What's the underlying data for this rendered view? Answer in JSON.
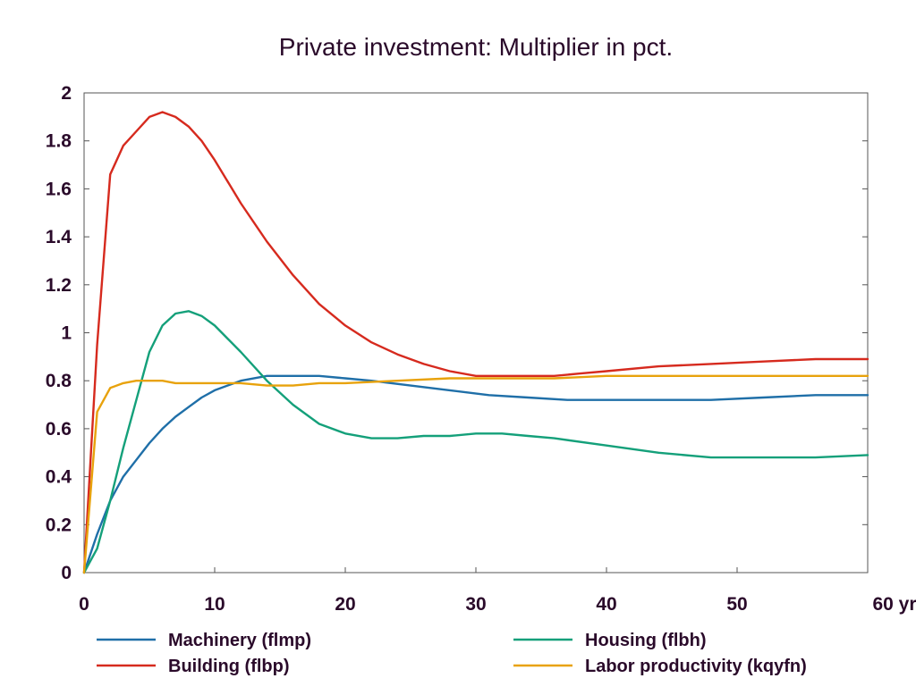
{
  "chart_data": {
    "type": "line",
    "title": "Private investment: Multiplier in pct.",
    "xlabel": "",
    "ylabel": "",
    "x_unit_label": "yr",
    "xlim": [
      0,
      60
    ],
    "ylim": [
      0,
      2
    ],
    "x_ticks": [
      0,
      10,
      20,
      30,
      40,
      50,
      60
    ],
    "x_tick_labels": [
      "0",
      "10",
      "20",
      "30",
      "40",
      "50",
      "60 yr"
    ],
    "y_ticks": [
      0,
      0.2,
      0.4,
      0.6,
      0.8,
      1,
      1.2,
      1.4,
      1.6,
      1.8,
      2
    ],
    "y_tick_labels": [
      "0",
      "0.2",
      "0.4",
      "0.6",
      "0.8",
      "1",
      "1.2",
      "1.4",
      "1.6",
      "1.8",
      "2"
    ],
    "grid": false,
    "legend_position": "bottom",
    "series": [
      {
        "name": "Machinery (flmp)",
        "color": "#1f6fa8",
        "x": [
          0,
          1,
          2,
          3,
          4,
          5,
          6,
          7,
          8,
          9,
          10,
          12,
          14,
          16,
          18,
          20,
          22,
          25,
          28,
          31,
          34,
          37,
          40,
          44,
          48,
          52,
          56,
          60
        ],
        "y": [
          0,
          0.16,
          0.3,
          0.4,
          0.47,
          0.54,
          0.6,
          0.65,
          0.69,
          0.73,
          0.76,
          0.8,
          0.82,
          0.82,
          0.82,
          0.81,
          0.8,
          0.78,
          0.76,
          0.74,
          0.73,
          0.72,
          0.72,
          0.72,
          0.72,
          0.73,
          0.74,
          0.74
        ]
      },
      {
        "name": "Building (flbp)",
        "color": "#d62a1e",
        "x": [
          0,
          1,
          2,
          3,
          4,
          5,
          6,
          7,
          8,
          9,
          10,
          12,
          14,
          16,
          18,
          20,
          22,
          24,
          26,
          28,
          30,
          32,
          34,
          36,
          38,
          40,
          44,
          48,
          52,
          56,
          60
        ],
        "y": [
          0,
          0.95,
          1.66,
          1.78,
          1.84,
          1.9,
          1.92,
          1.9,
          1.86,
          1.8,
          1.72,
          1.54,
          1.38,
          1.24,
          1.12,
          1.03,
          0.96,
          0.91,
          0.87,
          0.84,
          0.82,
          0.82,
          0.82,
          0.82,
          0.83,
          0.84,
          0.86,
          0.87,
          0.88,
          0.89,
          0.89
        ]
      },
      {
        "name": "Housing (flbh)",
        "color": "#14a07a",
        "x": [
          0,
          1,
          2,
          3,
          4,
          5,
          6,
          7,
          8,
          9,
          10,
          12,
          14,
          16,
          18,
          20,
          22,
          24,
          26,
          28,
          30,
          32,
          34,
          36,
          40,
          44,
          48,
          52,
          56,
          60
        ],
        "y": [
          0,
          0.1,
          0.3,
          0.52,
          0.72,
          0.92,
          1.03,
          1.08,
          1.09,
          1.07,
          1.03,
          0.92,
          0.8,
          0.7,
          0.62,
          0.58,
          0.56,
          0.56,
          0.57,
          0.57,
          0.58,
          0.58,
          0.57,
          0.56,
          0.53,
          0.5,
          0.48,
          0.48,
          0.48,
          0.49
        ]
      },
      {
        "name": "Labor productivity (kqyfn)",
        "color": "#e8a20c",
        "x": [
          0,
          1,
          2,
          3,
          4,
          5,
          6,
          7,
          8,
          9,
          10,
          12,
          14,
          16,
          18,
          20,
          24,
          28,
          32,
          36,
          40,
          44,
          48,
          52,
          56,
          60
        ],
        "y": [
          0,
          0.67,
          0.77,
          0.79,
          0.8,
          0.8,
          0.8,
          0.79,
          0.79,
          0.79,
          0.79,
          0.79,
          0.78,
          0.78,
          0.79,
          0.79,
          0.8,
          0.81,
          0.81,
          0.81,
          0.82,
          0.82,
          0.82,
          0.82,
          0.82,
          0.82
        ]
      }
    ]
  }
}
